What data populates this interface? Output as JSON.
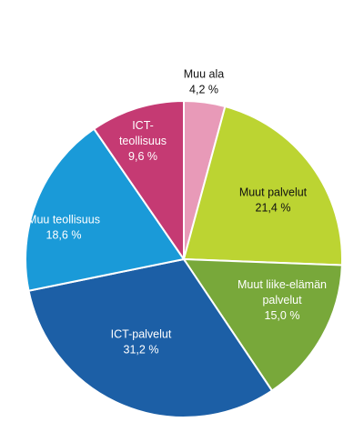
{
  "chart_data": {
    "type": "pie",
    "title": "",
    "start_angle_deg": 0,
    "direction": "clockwise",
    "legend": "none",
    "slices": [
      {
        "lines": [
          "Muu ala"
        ],
        "value_label": "4,2 %",
        "value": 4.2,
        "color": "#e89ab8",
        "text_color": "#111111"
      },
      {
        "lines": [
          "Muut palvelut"
        ],
        "value_label": "21,4 %",
        "value": 21.4,
        "color": "#bcd432",
        "text_color": "#111111"
      },
      {
        "lines": [
          "Muut liike-elämän",
          "palvelut"
        ],
        "value_label": "15,0 %",
        "value": 15.0,
        "color": "#78a83a",
        "text_color": "#ffffff"
      },
      {
        "lines": [
          "ICT-palvelut"
        ],
        "value_label": "31,2 %",
        "value": 31.2,
        "color": "#1c5fa6",
        "text_color": "#ffffff"
      },
      {
        "lines": [
          "Muu teollisuus"
        ],
        "value_label": "18,6 %",
        "value": 18.6,
        "color": "#1a9ad8",
        "text_color": "#ffffff"
      },
      {
        "lines": [
          "ICT-",
          "teollisuus"
        ],
        "value_label": "9,6 %",
        "value": 9.6,
        "color": "#c53a73",
        "text_color": "#ffffff"
      }
    ]
  }
}
